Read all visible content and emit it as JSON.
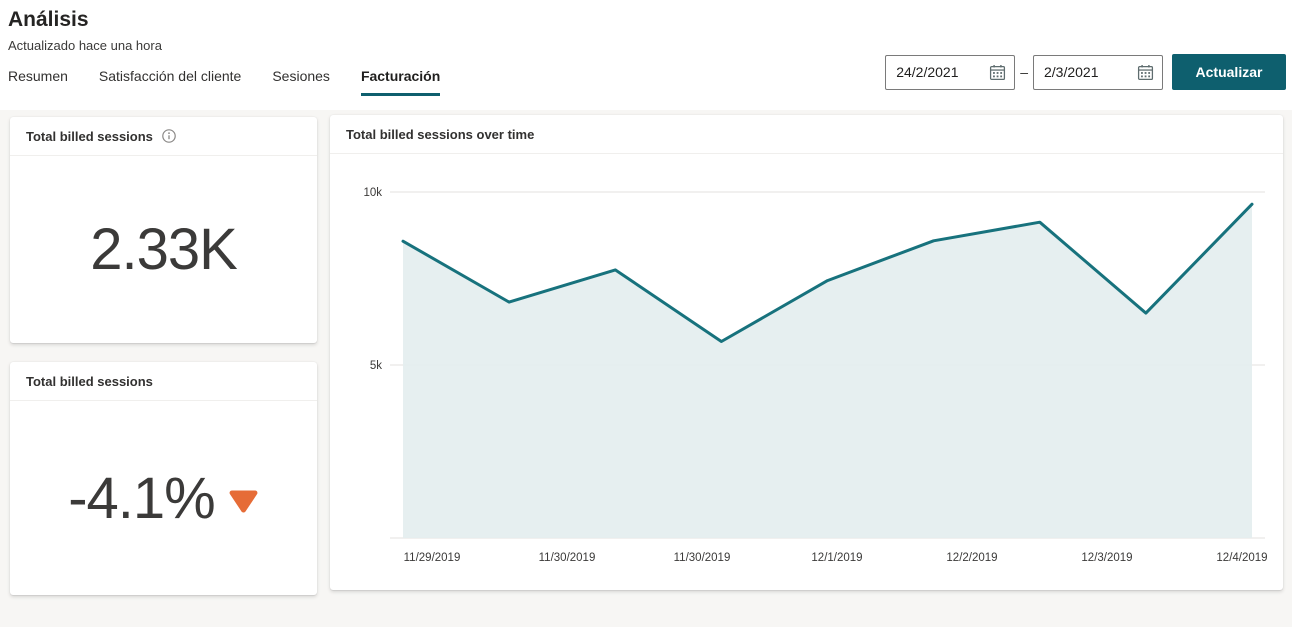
{
  "page": {
    "title": "Análisis",
    "subtitle": "Actualizado hace una hora"
  },
  "tabs": [
    {
      "label": "Resumen",
      "active": false
    },
    {
      "label": "Satisfacción del cliente",
      "active": false
    },
    {
      "label": "Sesiones",
      "active": false
    },
    {
      "label": "Facturación",
      "active": true
    }
  ],
  "date_filter": {
    "start_value": "24/2/2021",
    "end_value": "2/3/2021",
    "separator": "–",
    "apply_label": "Actualizar"
  },
  "cards": {
    "total_billed": {
      "title": "Total billed sessions",
      "value": "2.33K",
      "has_info_icon": true
    },
    "change": {
      "title": "Total billed sessions",
      "value": "-4.1%",
      "trend": "down"
    }
  },
  "chart_card": {
    "title": "Total billed sessions over time"
  },
  "chart_data": {
    "type": "area",
    "title": "Total billed sessions over time",
    "x_tick_labels": [
      "11/29/2019",
      "11/30/2019",
      "11/30/2019",
      "12/1/2019",
      "12/2/2019",
      "12/3/2019",
      "12/4/2019"
    ],
    "values_thousands": [
      8.58,
      6.82,
      7.75,
      5.68,
      7.44,
      8.59,
      9.13,
      6.5,
      9.65
    ],
    "y_ticks": [
      {
        "value": 0,
        "label": ""
      },
      {
        "value": 5,
        "label": "5k"
      },
      {
        "value": 10,
        "label": "10k"
      }
    ],
    "ylim": [
      0,
      11.1
    ],
    "grid": true,
    "legend": false,
    "line_color": "#17727d",
    "fill_color": "#e4eeef"
  },
  "colors": {
    "accent": "#0e5f6e",
    "negative_trend": "#e66c37",
    "content_bg": "#f7f6f4"
  }
}
